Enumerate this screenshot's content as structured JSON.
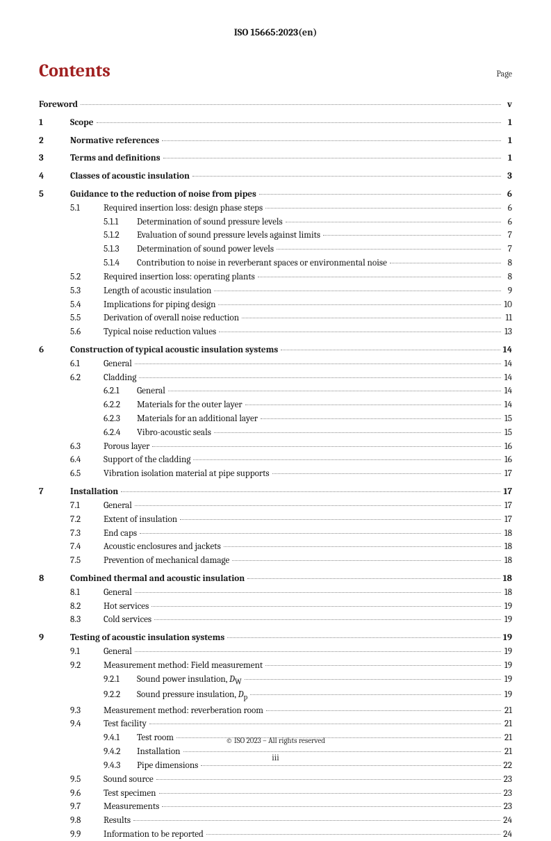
{
  "header": "ISO 15665:2023(en)",
  "title": "Contents",
  "page_label": "Page",
  "colors": {
    "accent": "#a02020",
    "text": "#1a1a1a",
    "leader": "#888888"
  },
  "footer": "© ISO 2023 – All rights reserved",
  "page_number": "iii",
  "toc": [
    {
      "level": 0,
      "num": "",
      "title": "Foreword",
      "page": "v"
    },
    {
      "level": 0,
      "num": "1",
      "title": "Scope",
      "page": "1"
    },
    {
      "level": 0,
      "num": "2",
      "title": "Normative references",
      "page": "1"
    },
    {
      "level": 0,
      "num": "3",
      "title": "Terms and definitions",
      "page": "1"
    },
    {
      "level": 0,
      "num": "4",
      "title": "Classes of acoustic insulation",
      "page": "3"
    },
    {
      "level": 0,
      "num": "5",
      "title": "Guidance to the reduction of noise from pipes",
      "page": "6"
    },
    {
      "level": 1,
      "num": "5.1",
      "title": "Required insertion loss: design phase steps",
      "page": "6"
    },
    {
      "level": 2,
      "num": "5.1.1",
      "title": "Determination of sound pressure levels",
      "page": "6"
    },
    {
      "level": 2,
      "num": "5.1.2",
      "title": "Evaluation of sound pressure levels against limits",
      "page": "7"
    },
    {
      "level": 2,
      "num": "5.1.3",
      "title": "Determination of sound power levels",
      "page": "7"
    },
    {
      "level": 2,
      "num": "5.1.4",
      "title": "Contribution to noise in reverberant spaces or environmental noise",
      "page": "8"
    },
    {
      "level": 1,
      "num": "5.2",
      "title": "Required insertion loss: operating plants",
      "page": "8"
    },
    {
      "level": 1,
      "num": "5.3",
      "title": "Length of acoustic insulation",
      "page": "9"
    },
    {
      "level": 1,
      "num": "5.4",
      "title": "Implications for piping design",
      "page": "10"
    },
    {
      "level": 1,
      "num": "5.5",
      "title": "Derivation of overall noise reduction",
      "page": "11"
    },
    {
      "level": 1,
      "num": "5.6",
      "title": "Typical noise reduction values",
      "page": "13"
    },
    {
      "level": 0,
      "num": "6",
      "title": "Construction of typical acoustic insulation systems",
      "page": "14"
    },
    {
      "level": 1,
      "num": "6.1",
      "title": "General",
      "page": "14"
    },
    {
      "level": 1,
      "num": "6.2",
      "title": "Cladding",
      "page": "14"
    },
    {
      "level": 2,
      "num": "6.2.1",
      "title": "General",
      "page": "14"
    },
    {
      "level": 2,
      "num": "6.2.2",
      "title": "Materials for the outer layer",
      "page": "14"
    },
    {
      "level": 2,
      "num": "6.2.3",
      "title": "Materials for an additional layer",
      "page": "15"
    },
    {
      "level": 2,
      "num": "6.2.4",
      "title": "Vibro-acoustic seals",
      "page": "15"
    },
    {
      "level": 1,
      "num": "6.3",
      "title": "Porous layer",
      "page": "16"
    },
    {
      "level": 1,
      "num": "6.4",
      "title": "Support of the cladding",
      "page": "16"
    },
    {
      "level": 1,
      "num": "6.5",
      "title": "Vibration isolation material at pipe supports",
      "page": "17"
    },
    {
      "level": 0,
      "num": "7",
      "title": "Installation",
      "page": "17"
    },
    {
      "level": 1,
      "num": "7.1",
      "title": "General",
      "page": "17"
    },
    {
      "level": 1,
      "num": "7.2",
      "title": "Extent of insulation",
      "page": "17"
    },
    {
      "level": 1,
      "num": "7.3",
      "title": "End caps",
      "page": "18"
    },
    {
      "level": 1,
      "num": "7.4",
      "title": "Acoustic enclosures and jackets",
      "page": "18"
    },
    {
      "level": 1,
      "num": "7.5",
      "title": "Prevention of mechanical damage",
      "page": "18"
    },
    {
      "level": 0,
      "num": "8",
      "title": "Combined thermal and acoustic insulation",
      "page": "18"
    },
    {
      "level": 1,
      "num": "8.1",
      "title": "General",
      "page": "18"
    },
    {
      "level": 1,
      "num": "8.2",
      "title": "Hot services",
      "page": "19"
    },
    {
      "level": 1,
      "num": "8.3",
      "title": "Cold services",
      "page": "19"
    },
    {
      "level": 0,
      "num": "9",
      "title": "Testing of acoustic insulation systems",
      "page": "19"
    },
    {
      "level": 1,
      "num": "9.1",
      "title": "General",
      "page": "19"
    },
    {
      "level": 1,
      "num": "9.2",
      "title": "Measurement method: Field measurement",
      "page": "19"
    },
    {
      "level": 2,
      "num": "9.2.1",
      "title_html": "Sound power insulation, <i>D</i><sub>W</sub>",
      "title": "Sound power insulation, DW",
      "page": "19"
    },
    {
      "level": 2,
      "num": "9.2.2",
      "title_html": "Sound pressure insulation, <i>D</i><sub>p</sub>",
      "title": "Sound pressure insulation, Dp",
      "page": "19"
    },
    {
      "level": 1,
      "num": "9.3",
      "title": "Measurement method: reverberation room",
      "page": "21"
    },
    {
      "level": 1,
      "num": "9.4",
      "title": "Test facility",
      "page": "21"
    },
    {
      "level": 2,
      "num": "9.4.1",
      "title": "Test room",
      "page": "21"
    },
    {
      "level": 2,
      "num": "9.4.2",
      "title": "Installation",
      "page": "21"
    },
    {
      "level": 2,
      "num": "9.4.3",
      "title": "Pipe dimensions",
      "page": "22"
    },
    {
      "level": 1,
      "num": "9.5",
      "title": "Sound source",
      "page": "23"
    },
    {
      "level": 1,
      "num": "9.6",
      "title": "Test specimen",
      "page": "23"
    },
    {
      "level": 1,
      "num": "9.7",
      "title": "Measurements",
      "page": "23"
    },
    {
      "level": 1,
      "num": "9.8",
      "title": "Results",
      "page": "24"
    },
    {
      "level": 1,
      "num": "9.9",
      "title": "Information to be reported",
      "page": "24"
    }
  ]
}
